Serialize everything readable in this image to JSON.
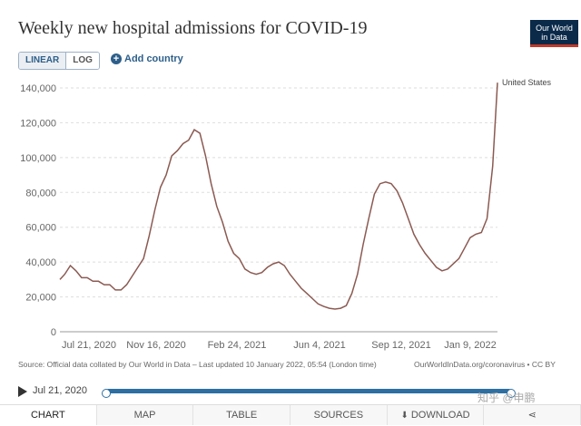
{
  "header": {
    "title": "Weekly new hospital admissions for COVID-19",
    "logo_line1": "Our World",
    "logo_line2": "in Data"
  },
  "controls": {
    "linear_label": "LINEAR",
    "log_label": "LOG",
    "add_country_label": "Add country"
  },
  "chart_data": {
    "type": "line",
    "title": "Weekly new hospital admissions for COVID-19",
    "xlabel": "",
    "ylabel": "",
    "ylim": [
      0,
      140000
    ],
    "y_ticks": [
      "0",
      "20,000",
      "40,000",
      "60,000",
      "80,000",
      "100,000",
      "120,000",
      "140,000"
    ],
    "x_ticks": [
      "Jul 21, 2020",
      "Nov 16, 2020",
      "Feb 24, 2021",
      "Jun 4, 2021",
      "Sep 12, 2021",
      "Jan 9, 2022"
    ],
    "grid": "horizontal",
    "series": [
      {
        "name": "United States",
        "color": "#8b5a52",
        "points": [
          [
            "2020-07-15",
            30000
          ],
          [
            "2020-07-21",
            33000
          ],
          [
            "2020-07-28",
            38000
          ],
          [
            "2020-08-04",
            35000
          ],
          [
            "2020-08-11",
            31000
          ],
          [
            "2020-08-18",
            31000
          ],
          [
            "2020-08-25",
            29000
          ],
          [
            "2020-09-01",
            29000
          ],
          [
            "2020-09-08",
            27000
          ],
          [
            "2020-09-15",
            27000
          ],
          [
            "2020-09-22",
            24000
          ],
          [
            "2020-09-29",
            24000
          ],
          [
            "2020-10-06",
            27000
          ],
          [
            "2020-10-13",
            32000
          ],
          [
            "2020-10-20",
            37000
          ],
          [
            "2020-10-27",
            42000
          ],
          [
            "2020-11-03",
            55000
          ],
          [
            "2020-11-10",
            70000
          ],
          [
            "2020-11-17",
            83000
          ],
          [
            "2020-11-24",
            90000
          ],
          [
            "2020-12-01",
            101000
          ],
          [
            "2020-12-08",
            104000
          ],
          [
            "2020-12-15",
            108000
          ],
          [
            "2020-12-22",
            110000
          ],
          [
            "2020-12-29",
            116000
          ],
          [
            "2021-01-05",
            114000
          ],
          [
            "2021-01-12",
            101000
          ],
          [
            "2021-01-19",
            85000
          ],
          [
            "2021-01-26",
            72000
          ],
          [
            "2021-02-02",
            63000
          ],
          [
            "2021-02-09",
            52000
          ],
          [
            "2021-02-16",
            45000
          ],
          [
            "2021-02-23",
            42000
          ],
          [
            "2021-03-02",
            36000
          ],
          [
            "2021-03-09",
            34000
          ],
          [
            "2021-03-16",
            33000
          ],
          [
            "2021-03-23",
            34000
          ],
          [
            "2021-03-30",
            37000
          ],
          [
            "2021-04-06",
            39000
          ],
          [
            "2021-04-13",
            40000
          ],
          [
            "2021-04-20",
            38000
          ],
          [
            "2021-04-27",
            33000
          ],
          [
            "2021-05-04",
            29000
          ],
          [
            "2021-05-11",
            25000
          ],
          [
            "2021-05-18",
            22000
          ],
          [
            "2021-05-25",
            19000
          ],
          [
            "2021-06-01",
            16000
          ],
          [
            "2021-06-08",
            14500
          ],
          [
            "2021-06-15",
            13500
          ],
          [
            "2021-06-22",
            13000
          ],
          [
            "2021-06-29",
            13500
          ],
          [
            "2021-07-06",
            15000
          ],
          [
            "2021-07-13",
            22000
          ],
          [
            "2021-07-20",
            33000
          ],
          [
            "2021-07-27",
            50000
          ],
          [
            "2021-08-03",
            65000
          ],
          [
            "2021-08-10",
            79000
          ],
          [
            "2021-08-17",
            85000
          ],
          [
            "2021-08-24",
            86000
          ],
          [
            "2021-08-31",
            85000
          ],
          [
            "2021-09-07",
            81000
          ],
          [
            "2021-09-14",
            74000
          ],
          [
            "2021-09-21",
            65000
          ],
          [
            "2021-09-28",
            56000
          ],
          [
            "2021-10-05",
            50000
          ],
          [
            "2021-10-12",
            45000
          ],
          [
            "2021-10-19",
            41000
          ],
          [
            "2021-10-26",
            37000
          ],
          [
            "2021-11-02",
            35000
          ],
          [
            "2021-11-09",
            36000
          ],
          [
            "2021-11-16",
            39000
          ],
          [
            "2021-11-23",
            42000
          ],
          [
            "2021-11-30",
            48000
          ],
          [
            "2021-12-07",
            54000
          ],
          [
            "2021-12-14",
            56000
          ],
          [
            "2021-12-21",
            57000
          ],
          [
            "2021-12-28",
            65000
          ],
          [
            "2022-01-04",
            95000
          ],
          [
            "2022-01-10",
            143000
          ]
        ]
      }
    ]
  },
  "footer": {
    "source_text": "Source: Official data collated by Our World in Data – Last updated 10 January 2022, 05:54 (London time)",
    "source_right": "OurWorldInData.org/coronavirus • CC BY"
  },
  "timeline": {
    "start_label": "Jul 21, 2020"
  },
  "tabs": [
    {
      "label": "CHART"
    },
    {
      "label": "MAP"
    },
    {
      "label": "TABLE"
    },
    {
      "label": "SOURCES"
    },
    {
      "label": "DOWNLOAD"
    },
    {
      "label": ""
    }
  ],
  "watermark": "知乎 @申鹏"
}
